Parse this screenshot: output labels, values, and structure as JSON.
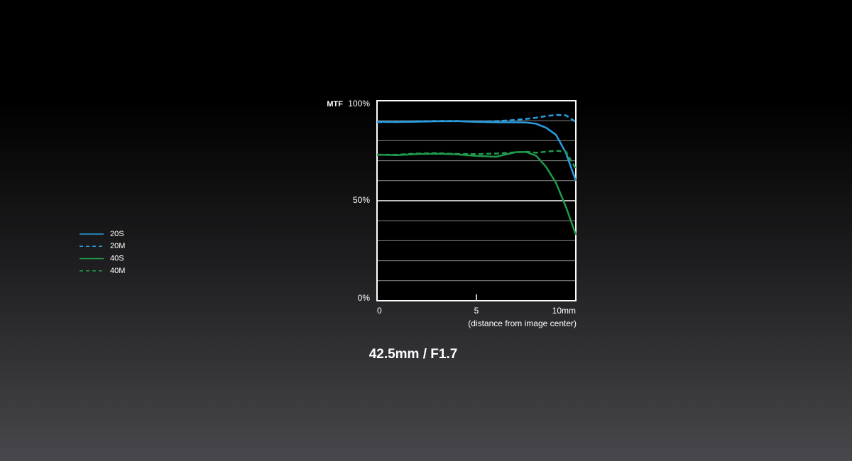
{
  "chart_data": {
    "type": "line",
    "title": "42.5mm / F1.7",
    "y_label": "MTF",
    "x_label": "(distance from image center)",
    "x": [
      0,
      1,
      2,
      3,
      4,
      5,
      6,
      7,
      7.5,
      8,
      8.5,
      9,
      9.5,
      10
    ],
    "series": [
      {
        "name": "20S",
        "color": "#2a9de0",
        "dashed": false,
        "values": [
          89.5,
          89.3,
          89.5,
          89.7,
          89.8,
          89.4,
          89.2,
          89.2,
          89.1,
          88.5,
          86.5,
          83,
          74,
          60
        ]
      },
      {
        "name": "20M",
        "color": "#2a9de0",
        "dashed": true,
        "values": [
          89.3,
          89.4,
          89.7,
          89.9,
          89.9,
          89.5,
          89.8,
          90.4,
          90.9,
          91.5,
          92.3,
          92.9,
          92.7,
          89.4
        ]
      },
      {
        "name": "40S",
        "color": "#1f9a4c",
        "dashed": false,
        "values": [
          73,
          72.8,
          73.3,
          73.5,
          73.2,
          72.4,
          72,
          74.3,
          74.4,
          72.5,
          67,
          59,
          47,
          33
        ]
      },
      {
        "name": "40M",
        "color": "#1f9a4c",
        "dashed": true,
        "values": [
          73,
          73,
          73.6,
          73.8,
          73.4,
          73.3,
          73.6,
          74.2,
          74.5,
          74,
          74.5,
          75,
          74.5,
          66
        ]
      }
    ],
    "xlim": [
      0,
      10
    ],
    "xticks": [
      0,
      5,
      {
        "value": 10,
        "label": "10mm"
      }
    ],
    "ylim": [
      0,
      100
    ],
    "yticks": [
      {
        "value": 0,
        "label": "0%"
      },
      {
        "value": 50,
        "label": "50%"
      },
      {
        "value": 100,
        "label": "100%"
      }
    ],
    "minor_yticks": [
      10,
      20,
      30,
      40,
      60,
      70,
      80,
      90
    ],
    "grid": true,
    "legend": "left"
  }
}
